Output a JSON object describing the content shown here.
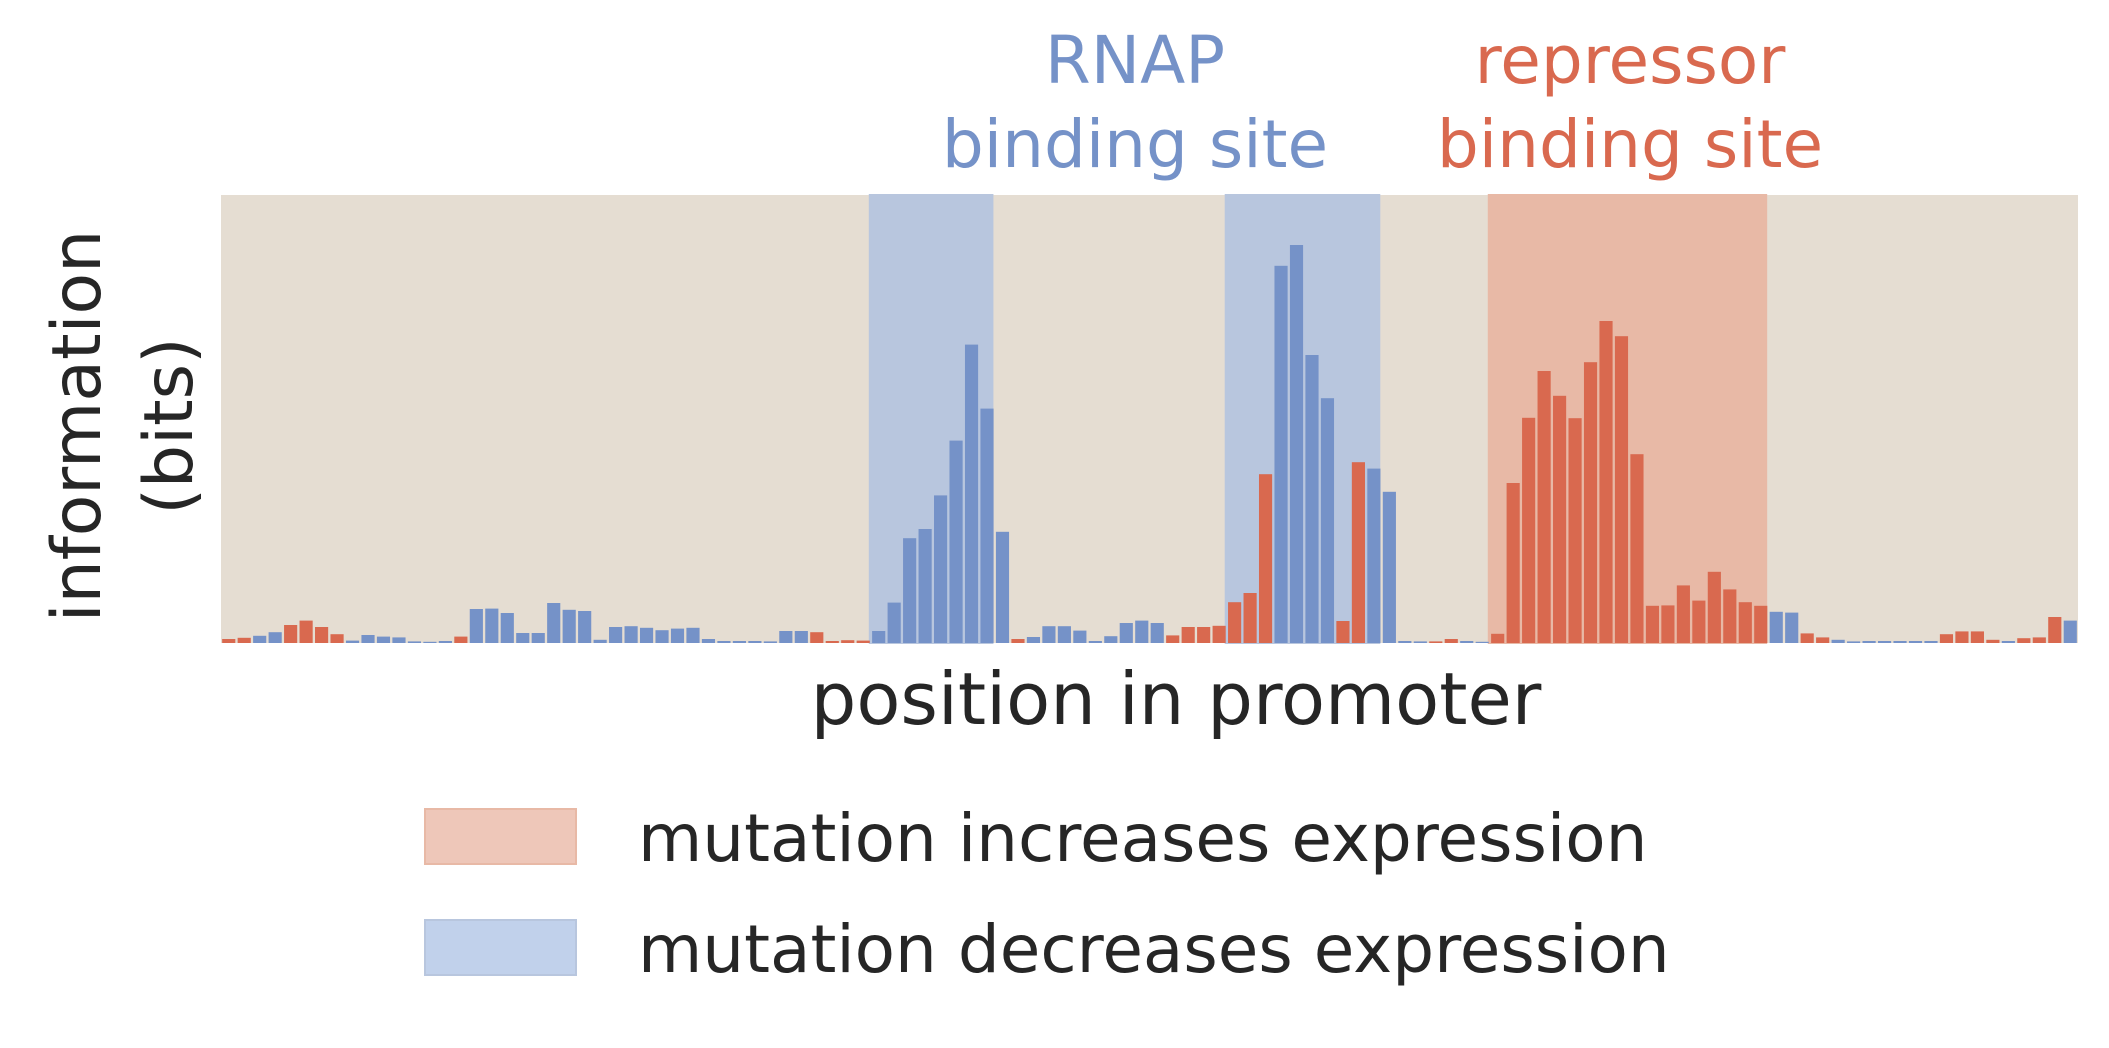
{
  "colors": {
    "increase_color": "#D9694F",
    "decrease_color": "#7592C8",
    "increase_shade": "#E8B9A6",
    "decrease_shade": "#B8C6DE",
    "legend_increase_patch": "#EEC7B9",
    "legend_decrease_patch": "#C1D1EB",
    "plot_background": "#E5DDD2",
    "text": "#262626"
  },
  "chart_data": {
    "type": "bar",
    "ylabel_line1": "information",
    "ylabel_line2": "(bits)",
    "xlabel": "position in promoter",
    "grid": false,
    "ylim": [
      0,
      1.0
    ],
    "annotations": {
      "rnap_line1": "RNAP",
      "rnap_line2": "binding site",
      "repressor_line1": "repressor",
      "repressor_line2": "binding site"
    },
    "legend": {
      "placement": "bottom",
      "entries": [
        {
          "key": "increase",
          "label": "mutation increases expression"
        },
        {
          "key": "decrease",
          "label": "mutation decreases expression"
        }
      ]
    },
    "n_positions": 120,
    "highlighted_regions": [
      {
        "type": "decrease",
        "start": 42,
        "end": 49
      },
      {
        "type": "decrease",
        "start": 65,
        "end": 74
      },
      {
        "type": "increase",
        "start": 82,
        "end": 99
      }
    ],
    "values": [
      0.01,
      0.013,
      0.018,
      0.027,
      0.045,
      0.056,
      0.04,
      0.022,
      0.006,
      0.02,
      0.016,
      0.014,
      0.004,
      0.003,
      0.0,
      0.016,
      0.085,
      0.086,
      0.075,
      0.025,
      0.025,
      0.1,
      0.083,
      0.08,
      0.008,
      0.04,
      0.042,
      0.038,
      0.032,
      0.036,
      0.038,
      0.01,
      0.0,
      0.0,
      0.0,
      0.004,
      0.03,
      0.03,
      0.027,
      0.0,
      0.007,
      0.006,
      0.03,
      0.101,
      0.262,
      0.285,
      0.369,
      0.506,
      0.746,
      0.586,
      0.278,
      0.01,
      0.015,
      0.042,
      0.042,
      0.031,
      0.0,
      0.017,
      0.05,
      0.056,
      0.05,
      0.019,
      0.04,
      0.04,
      0.043,
      0.102,
      0.125,
      0.422,
      0.943,
      0.995,
      0.72,
      0.612,
      0.055,
      0.452,
      0.436,
      0.378,
      0.0,
      0.004,
      0.004,
      0.01,
      0.005,
      0.003,
      0.023,
      0.4,
      0.563,
      0.68,
      0.618,
      0.562,
      0.702,
      0.805,
      0.767,
      0.472,
      0.093,
      0.094,
      0.144,
      0.106,
      0.178,
      0.134,
      0.102,
      0.093,
      0.078,
      0.076,
      0.024,
      0.014,
      0.008,
      0.004,
      0.0,
      0.0,
      0.0,
      0.0,
      0.0,
      0.022,
      0.029,
      0.029,
      0.008,
      0.0,
      0.012,
      0.014,
      0.065,
      0.056
    ],
    "effects": [
      "increase",
      "increase",
      "decrease",
      "decrease",
      "increase",
      "increase",
      "increase",
      "increase",
      "decrease",
      "decrease",
      "decrease",
      "decrease",
      "decrease",
      "decrease",
      "decrease",
      "increase",
      "decrease",
      "decrease",
      "decrease",
      "decrease",
      "decrease",
      "decrease",
      "decrease",
      "decrease",
      "decrease",
      "decrease",
      "decrease",
      "decrease",
      "decrease",
      "decrease",
      "decrease",
      "decrease",
      "decrease",
      "decrease",
      "decrease",
      "decrease",
      "decrease",
      "decrease",
      "increase",
      "increase",
      "increase",
      "increase",
      "decrease",
      "decrease",
      "decrease",
      "decrease",
      "decrease",
      "decrease",
      "decrease",
      "decrease",
      "decrease",
      "increase",
      "decrease",
      "decrease",
      "decrease",
      "decrease",
      "decrease",
      "decrease",
      "decrease",
      "decrease",
      "decrease",
      "increase",
      "increase",
      "increase",
      "increase",
      "increase",
      "increase",
      "increase",
      "decrease",
      "decrease",
      "decrease",
      "decrease",
      "increase",
      "increase",
      "decrease",
      "decrease",
      "decrease",
      "decrease",
      "increase",
      "increase",
      "decrease",
      "decrease",
      "increase",
      "increase",
      "increase",
      "increase",
      "increase",
      "increase",
      "increase",
      "increase",
      "increase",
      "increase",
      "increase",
      "increase",
      "increase",
      "increase",
      "increase",
      "increase",
      "increase",
      "increase",
      "decrease",
      "decrease",
      "increase",
      "increase",
      "decrease",
      "decrease",
      "decrease",
      "decrease",
      "decrease",
      "decrease",
      "decrease",
      "increase",
      "increase",
      "increase",
      "increase",
      "decrease",
      "increase",
      "increase",
      "increase",
      "decrease"
    ]
  }
}
